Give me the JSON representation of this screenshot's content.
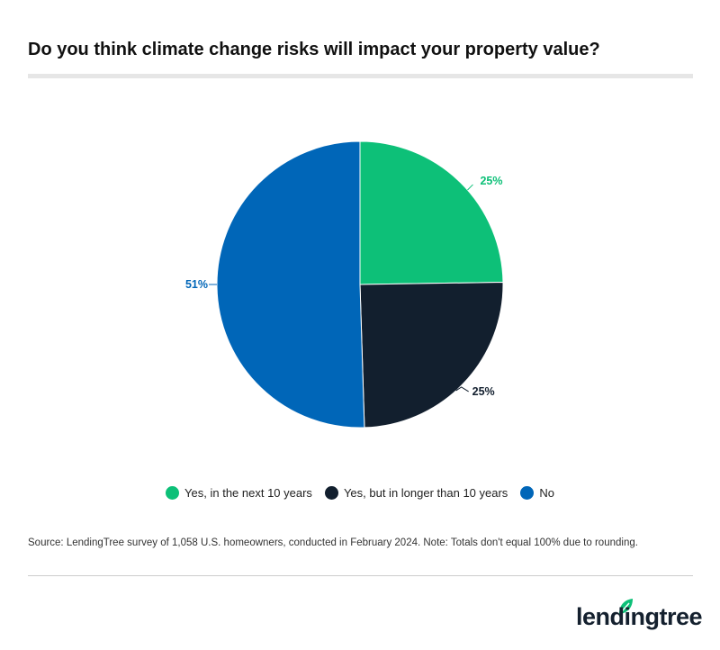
{
  "title": "Do you think climate change risks will impact your property value?",
  "chart_data": {
    "type": "pie",
    "title": "Do you think climate change risks will impact your property value?",
    "slices": [
      {
        "name": "Yes, in the next 10 years",
        "value": 25,
        "label": "25%",
        "color": "#0dc078"
      },
      {
        "name": "Yes, but in longer than 10 years",
        "value": 25,
        "label": "25%",
        "color": "#121f2e"
      },
      {
        "name": "No",
        "value": 51,
        "label": "51%",
        "color": "#0066b8"
      }
    ],
    "legend_position": "bottom"
  },
  "source": "Source: LendingTree survey of 1,058 U.S. homeowners, conducted in February 2024. Note: Totals don't equal 100% due to rounding.",
  "logo": {
    "text": "lendingtree",
    "leaf_color": "#0dc078"
  }
}
